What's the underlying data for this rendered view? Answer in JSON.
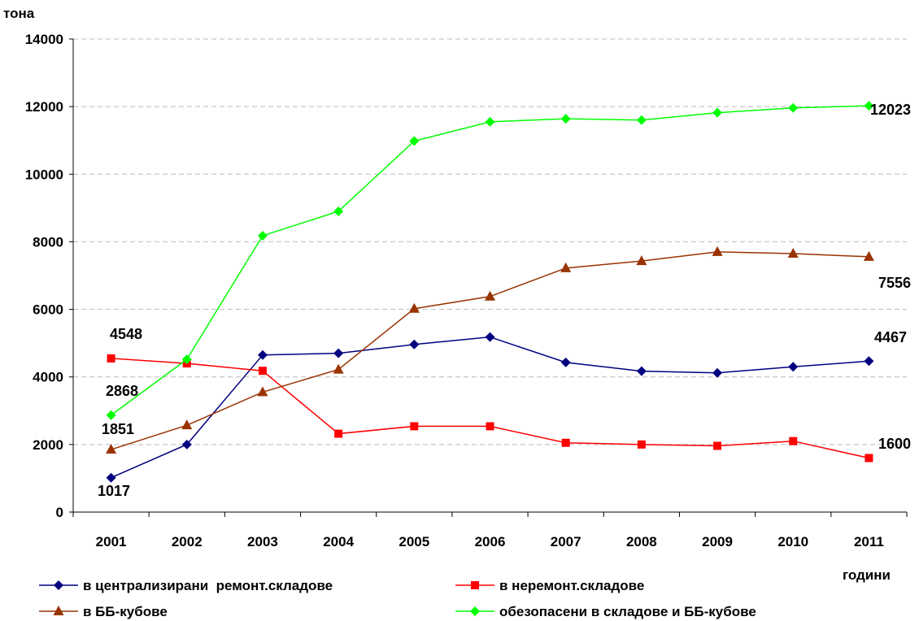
{
  "chart_data": {
    "type": "line",
    "ylabel": "тона",
    "xlabel": "години",
    "ylim": [
      0,
      14000
    ],
    "yticks": [
      0,
      2000,
      4000,
      6000,
      8000,
      10000,
      12000,
      14000
    ],
    "ytick_labels": [
      "0",
      "2000",
      "4000",
      "6000",
      "8000",
      "10000",
      "12000",
      "14000"
    ],
    "categories": [
      "2001",
      "2002",
      "2003",
      "2004",
      "2005",
      "2006",
      "2007",
      "2008",
      "2009",
      "2010",
      "2011"
    ],
    "grid": "horizontal dashed",
    "legend_position": "bottom",
    "series": [
      {
        "name": "в централизирани  ремонт.складове",
        "color": "#000080",
        "marker": "diamond",
        "values": [
          1017,
          2000,
          4650,
          4700,
          4960,
          5180,
          4430,
          4170,
          4120,
          4300,
          4467
        ],
        "labels": [
          {
            "index": 0,
            "text": "1017"
          },
          {
            "index": 10,
            "text": "4467"
          }
        ]
      },
      {
        "name": "в неремонт.складове",
        "color": "#ff0000",
        "marker": "square",
        "values": [
          4548,
          4400,
          4180,
          2320,
          2540,
          2540,
          2050,
          2000,
          1960,
          2100,
          1600
        ],
        "labels": [
          {
            "index": 0,
            "text": "4548"
          },
          {
            "index": 10,
            "text": "1600"
          }
        ]
      },
      {
        "name": "в ББ-кубове",
        "color": "#993300",
        "marker": "triangle",
        "values": [
          1851,
          2570,
          3550,
          4220,
          6020,
          6380,
          7220,
          7430,
          7700,
          7650,
          7556
        ],
        "labels": [
          {
            "index": 0,
            "text": "1851"
          },
          {
            "index": 10,
            "text": "7556"
          }
        ]
      },
      {
        "name": "обезопасени в складове и ББ-кубове",
        "color": "#00ff00",
        "marker": "diamond",
        "values": [
          2868,
          4520,
          8180,
          8900,
          10980,
          11550,
          11640,
          11600,
          11820,
          11960,
          12023
        ],
        "labels": [
          {
            "index": 0,
            "text": "2868"
          },
          {
            "index": 10,
            "text": "12023"
          }
        ]
      }
    ]
  }
}
